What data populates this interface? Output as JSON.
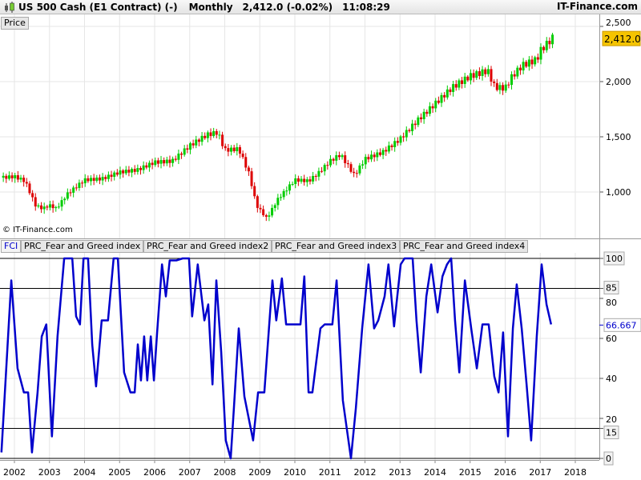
{
  "header": {
    "instrument": "US 500 Cash (E1 Contract) (-)",
    "period": "Monthly",
    "last": "2,412.0 (-0.02%)",
    "time": "11:08:29",
    "brand": "IT-Finance.com",
    "icon": "candlestick-icon"
  },
  "price_panel": {
    "tab": "Price",
    "copyright": "© IT-Finance.com",
    "last_price_label": "2,412.0",
    "axis_ticks": [
      {
        "v": 2500,
        "label": "2,500"
      },
      {
        "v": 2000,
        "label": "2,000"
      },
      {
        "v": 1500,
        "label": "1,500"
      },
      {
        "v": 1000,
        "label": "1,000"
      }
    ],
    "closes": [
      [
        2001.6,
        1130
      ],
      [
        2002.0,
        1140
      ],
      [
        2002.3,
        1100
      ],
      [
        2002.6,
        880
      ],
      [
        2002.8,
        850
      ],
      [
        2003.0,
        880
      ],
      [
        2003.2,
        850
      ],
      [
        2003.5,
        980
      ],
      [
        2004.0,
        1110
      ],
      [
        2004.5,
        1120
      ],
      [
        2005.0,
        1180
      ],
      [
        2005.5,
        1200
      ],
      [
        2006.0,
        1270
      ],
      [
        2006.5,
        1280
      ],
      [
        2007.0,
        1420
      ],
      [
        2007.5,
        1520
      ],
      [
        2007.8,
        1540
      ],
      [
        2008.0,
        1380
      ],
      [
        2008.4,
        1390
      ],
      [
        2008.7,
        1160
      ],
      [
        2008.9,
        880
      ],
      [
        2009.2,
        760
      ],
      [
        2009.5,
        930
      ],
      [
        2010.0,
        1110
      ],
      [
        2010.4,
        1100
      ],
      [
        2010.7,
        1180
      ],
      [
        2011.0,
        1280
      ],
      [
        2011.3,
        1340
      ],
      [
        2011.7,
        1150
      ],
      [
        2012.0,
        1300
      ],
      [
        2012.5,
        1360
      ],
      [
        2013.0,
        1480
      ],
      [
        2013.5,
        1650
      ],
      [
        2014.0,
        1800
      ],
      [
        2014.5,
        1950
      ],
      [
        2015.0,
        2050
      ],
      [
        2015.5,
        2100
      ],
      [
        2015.7,
        1950
      ],
      [
        2016.0,
        1940
      ],
      [
        2016.2,
        2050
      ],
      [
        2016.5,
        2150
      ],
      [
        2016.9,
        2200
      ],
      [
        2017.0,
        2280
      ],
      [
        2017.4,
        2412
      ]
    ]
  },
  "indicator_panel": {
    "tabs": [
      "FCI",
      "PRC_Fear and Greed index",
      "PRC_Fear and Greed index2",
      "PRC_Fear and Greed index3",
      "PRC_Fear and Greed index4"
    ],
    "axis_ticks": [
      {
        "v": 100,
        "label": "100",
        "boxed": true
      },
      {
        "v": 85,
        "label": "85",
        "boxed": true
      },
      {
        "v": 80,
        "label": "80"
      },
      {
        "v": 60,
        "label": "60"
      },
      {
        "v": 40,
        "label": "40"
      },
      {
        "v": 20,
        "label": "20"
      },
      {
        "v": 15,
        "label": "15",
        "boxed": true
      },
      {
        "v": 0,
        "label": "0",
        "boxed": true
      }
    ],
    "levels": [
      100,
      85,
      15,
      0
    ],
    "last_value_label": "66.667",
    "line_color": "#0000cc",
    "points": [
      [
        2001.63,
        3
      ],
      [
        2001.91,
        89
      ],
      [
        2002.09,
        45
      ],
      [
        2002.27,
        33
      ],
      [
        2002.39,
        33
      ],
      [
        2002.5,
        3
      ],
      [
        2002.66,
        33
      ],
      [
        2002.78,
        61
      ],
      [
        2002.91,
        67
      ],
      [
        2003.07,
        11
      ],
      [
        2003.23,
        61
      ],
      [
        2003.42,
        100
      ],
      [
        2003.65,
        100
      ],
      [
        2003.76,
        71
      ],
      [
        2003.87,
        67
      ],
      [
        2003.97,
        100
      ],
      [
        2004.1,
        100
      ],
      [
        2004.22,
        57
      ],
      [
        2004.33,
        36
      ],
      [
        2004.49,
        69
      ],
      [
        2004.67,
        69
      ],
      [
        2004.83,
        100
      ],
      [
        2004.95,
        100
      ],
      [
        2005.13,
        43
      ],
      [
        2005.31,
        33
      ],
      [
        2005.43,
        33
      ],
      [
        2005.52,
        57
      ],
      [
        2005.61,
        39
      ],
      [
        2005.7,
        61
      ],
      [
        2005.79,
        39
      ],
      [
        2005.89,
        61
      ],
      [
        2005.98,
        39
      ],
      [
        2006.07,
        63
      ],
      [
        2006.21,
        97
      ],
      [
        2006.32,
        81
      ],
      [
        2006.43,
        99
      ],
      [
        2006.62,
        99
      ],
      [
        2006.8,
        100
      ],
      [
        2006.98,
        100
      ],
      [
        2007.07,
        71
      ],
      [
        2007.23,
        97
      ],
      [
        2007.42,
        69
      ],
      [
        2007.53,
        77
      ],
      [
        2007.65,
        37
      ],
      [
        2007.76,
        89
      ],
      [
        2007.9,
        53
      ],
      [
        2008.03,
        9
      ],
      [
        2008.17,
        0
      ],
      [
        2008.26,
        25
      ],
      [
        2008.4,
        65
      ],
      [
        2008.56,
        31
      ],
      [
        2008.81,
        9
      ],
      [
        2008.95,
        33
      ],
      [
        2009.13,
        33
      ],
      [
        2009.36,
        89
      ],
      [
        2009.47,
        69
      ],
      [
        2009.63,
        90
      ],
      [
        2009.75,
        67
      ],
      [
        2009.93,
        67
      ],
      [
        2010.16,
        67
      ],
      [
        2010.27,
        91
      ],
      [
        2010.39,
        33
      ],
      [
        2010.5,
        33
      ],
      [
        2010.73,
        65
      ],
      [
        2010.85,
        67
      ],
      [
        2011.07,
        67
      ],
      [
        2011.19,
        89
      ],
      [
        2011.37,
        29
      ],
      [
        2011.6,
        0
      ],
      [
        2011.74,
        25
      ],
      [
        2011.92,
        65
      ],
      [
        2012.1,
        97
      ],
      [
        2012.26,
        65
      ],
      [
        2012.38,
        69
      ],
      [
        2012.56,
        81
      ],
      [
        2012.67,
        97
      ],
      [
        2012.83,
        66
      ],
      [
        2013.02,
        97
      ],
      [
        2013.13,
        100
      ],
      [
        2013.36,
        100
      ],
      [
        2013.47,
        69
      ],
      [
        2013.59,
        43
      ],
      [
        2013.75,
        81
      ],
      [
        2013.89,
        97
      ],
      [
        2014.07,
        73
      ],
      [
        2014.21,
        91
      ],
      [
        2014.34,
        97
      ],
      [
        2014.46,
        100
      ],
      [
        2014.57,
        69
      ],
      [
        2014.69,
        43
      ],
      [
        2014.85,
        89
      ],
      [
        2015.03,
        65
      ],
      [
        2015.19,
        45
      ],
      [
        2015.35,
        67
      ],
      [
        2015.53,
        67
      ],
      [
        2015.69,
        41
      ],
      [
        2015.81,
        33
      ],
      [
        2015.94,
        63
      ],
      [
        2016.08,
        11
      ],
      [
        2016.22,
        65
      ],
      [
        2016.33,
        87
      ],
      [
        2016.47,
        65
      ],
      [
        2016.61,
        37
      ],
      [
        2016.74,
        9
      ],
      [
        2016.9,
        61
      ],
      [
        2017.04,
        97
      ],
      [
        2017.18,
        77
      ],
      [
        2017.31,
        67
      ]
    ]
  },
  "x_axis": {
    "years": [
      2002,
      2003,
      2004,
      2005,
      2006,
      2007,
      2008,
      2009,
      2010,
      2011,
      2012,
      2013,
      2014,
      2015,
      2016,
      2017,
      2018
    ]
  },
  "colors": {
    "up": "#00cc00",
    "down": "#dd0000",
    "last_price_bg": "#f5c400",
    "indicator": "#0000cc"
  }
}
